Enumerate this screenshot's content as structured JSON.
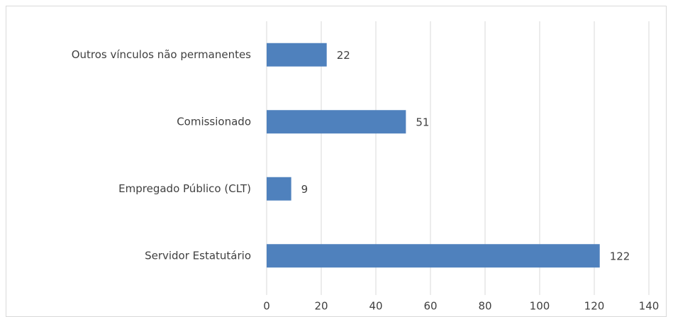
{
  "chart_data": {
    "type": "bar",
    "orientation": "horizontal",
    "categories": [
      "Outros vínculos não permanentes",
      "Comissionado",
      "Empregado Público (CLT)",
      "Servidor Estatutário"
    ],
    "values": [
      22,
      51,
      9,
      122
    ],
    "color": "#4f81bd",
    "xlim": [
      0,
      140
    ],
    "xticks": [
      0,
      20,
      40,
      60,
      80,
      100,
      120,
      140
    ],
    "grid": true
  }
}
